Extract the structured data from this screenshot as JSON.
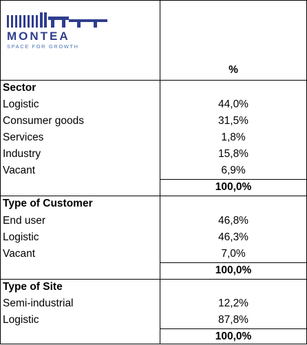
{
  "header": {
    "logo_name": "MONTEA",
    "logo_tagline": "SPACE FOR GROWTH",
    "column": "%"
  },
  "sections": [
    {
      "title": "Sector",
      "rows": [
        {
          "label": "Logistic",
          "value": "44,0%"
        },
        {
          "label": "Consumer goods",
          "value": "31,5%"
        },
        {
          "label": "Services",
          "value": "1,8%"
        },
        {
          "label": "Industry",
          "value": "15,8%"
        },
        {
          "label": "Vacant",
          "value": "6,9%"
        }
      ],
      "total": "100,0%"
    },
    {
      "title": "Type of Customer",
      "rows": [
        {
          "label": "End user",
          "value": "46,8%"
        },
        {
          "label": "Logistic",
          "value": "46,3%"
        },
        {
          "label": "Vacant",
          "value": "7,0%"
        }
      ],
      "total": "100,0%"
    },
    {
      "title": "Type of Site",
      "rows": [
        {
          "label": "Semi-industrial",
          "value": "12,2%"
        },
        {
          "label": "Logistic",
          "value": "87,8%"
        }
      ],
      "total": "100,0%"
    }
  ]
}
